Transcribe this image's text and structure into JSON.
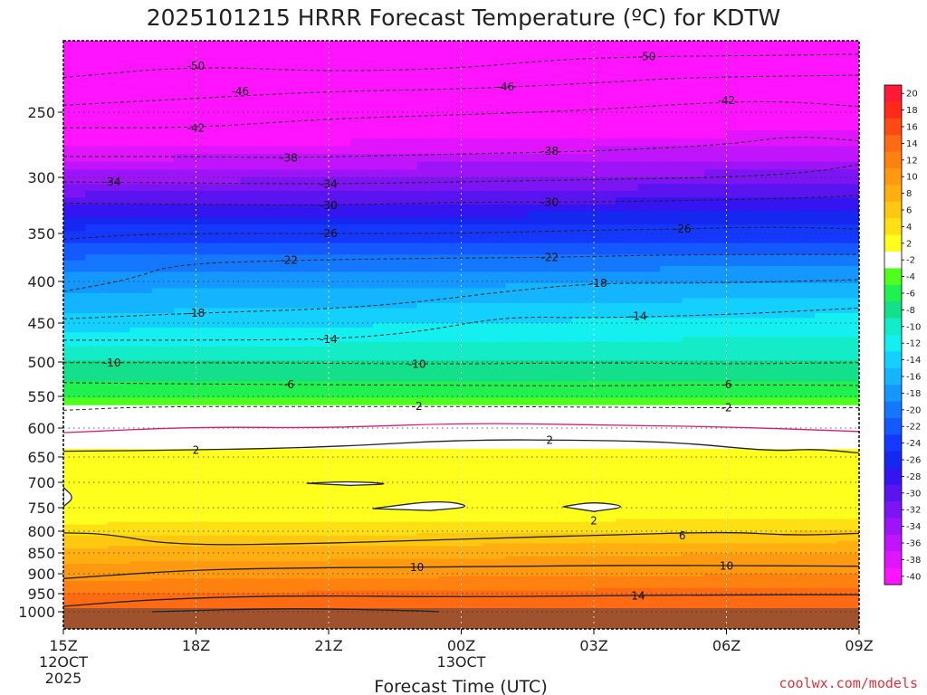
{
  "chart_data": {
    "type": "heatmap",
    "title": "2025101215 HRRR Forecast Temperature (ºC) for KDTW",
    "xlabel": "Forecast Time (UTC)",
    "credit": "coolwx.com/models",
    "x_ticks": [
      {
        "label": "15Z",
        "sub1": "12OCT",
        "sub2": "2025",
        "hours": 0
      },
      {
        "label": "18Z",
        "sub1": "",
        "sub2": "",
        "hours": 3
      },
      {
        "label": "21Z",
        "sub1": "",
        "sub2": "",
        "hours": 6
      },
      {
        "label": "00Z",
        "sub1": "13OCT",
        "sub2": "",
        "hours": 9
      },
      {
        "label": "03Z",
        "sub1": "",
        "sub2": "",
        "hours": 12
      },
      {
        "label": "06Z",
        "sub1": "",
        "sub2": "",
        "hours": 15
      },
      {
        "label": "09Z",
        "sub1": "",
        "sub2": "",
        "hours": 18
      }
    ],
    "xlim_hours": [
      0,
      18
    ],
    "y_ticks": [
      "250",
      "300",
      "350",
      "400",
      "450",
      "500",
      "550",
      "600",
      "650",
      "700",
      "750",
      "800",
      "850",
      "900",
      "950",
      "1000"
    ],
    "y_values": [
      250,
      300,
      350,
      400,
      450,
      500,
      550,
      600,
      650,
      700,
      750,
      800,
      850,
      900,
      950,
      1000
    ],
    "ylim_hpa": [
      200,
      1050
    ],
    "colorbar": {
      "labels": [
        "20",
        "18",
        "16",
        "14",
        "12",
        "10",
        "8",
        "6",
        "4",
        "2",
        "-2",
        "-4",
        "-6",
        "-8",
        "-10",
        "-12",
        "-14",
        "-16",
        "-18",
        "-20",
        "-22",
        "-24",
        "-26",
        "-28",
        "-30",
        "-32",
        "-34",
        "-36",
        "-38",
        "-40"
      ],
      "colors": [
        "#ff1a3a",
        "#ff2a1a",
        "#ff4a14",
        "#ff6a12",
        "#ff8210",
        "#ff9a10",
        "#ffb010",
        "#ffc810",
        "#ffe014",
        "#ffff1e",
        "#ffffff",
        "#50ff1e",
        "#20f050",
        "#14e08c",
        "#14ecc8",
        "#14f0f0",
        "#14d0ff",
        "#14b4ff",
        "#1498ff",
        "#1478ff",
        "#1458ff",
        "#1438ff",
        "#1428f0",
        "#3414f0",
        "#5a14f0",
        "#7c14f4",
        "#9e14f8",
        "#c014fc",
        "#e014ff",
        "#ff14ff"
      ]
    },
    "temperature_profile": {
      "pressure_hpa": [
        200,
        250,
        300,
        350,
        400,
        450,
        500,
        550,
        600,
        650,
        700,
        750,
        800,
        850,
        900,
        950,
        1000
      ],
      "temp_c_initial": [
        -53,
        -46,
        -35,
        -25,
        -19,
        -15,
        -10,
        -6,
        0,
        3,
        2,
        2,
        5,
        9,
        11,
        14,
        14
      ],
      "temp_c_final": [
        -51,
        -43,
        -33,
        -25,
        -18,
        -13,
        -10,
        -6,
        0,
        3,
        2,
        2,
        6,
        10,
        12,
        15,
        14
      ]
    },
    "contour_labels": [
      {
        "text": "-50",
        "hours": 3.0,
        "p": 210
      },
      {
        "text": "-50",
        "hours": 13.2,
        "p": 202
      },
      {
        "text": "-46",
        "hours": 4.0,
        "p": 232
      },
      {
        "text": "-46",
        "hours": 10.0,
        "p": 228
      },
      {
        "text": "-42",
        "hours": 3.0,
        "p": 262
      },
      {
        "text": "-42",
        "hours": 15.0,
        "p": 240
      },
      {
        "text": "-38",
        "hours": 5.1,
        "p": 285
      },
      {
        "text": "-38",
        "hours": 11.0,
        "p": 280
      },
      {
        "text": "-34",
        "hours": 1.1,
        "p": 304
      },
      {
        "text": "-34",
        "hours": 6.0,
        "p": 306
      },
      {
        "text": "-30",
        "hours": 6.0,
        "p": 325
      },
      {
        "text": "-30",
        "hours": 11.0,
        "p": 322
      },
      {
        "text": "-26",
        "hours": 6.0,
        "p": 350
      },
      {
        "text": "-26",
        "hours": 14.0,
        "p": 346
      },
      {
        "text": "-22",
        "hours": 5.1,
        "p": 378
      },
      {
        "text": "-22",
        "hours": 11.0,
        "p": 375
      },
      {
        "text": "-18",
        "hours": 3.0,
        "p": 438
      },
      {
        "text": "-18",
        "hours": 12.1,
        "p": 402
      },
      {
        "text": "-14",
        "hours": 6.0,
        "p": 471
      },
      {
        "text": "-14",
        "hours": 13.0,
        "p": 442
      },
      {
        "text": "-10",
        "hours": 1.1,
        "p": 501
      },
      {
        "text": "-10",
        "hours": 8.0,
        "p": 503
      },
      {
        "text": "-6",
        "hours": 5.1,
        "p": 533
      },
      {
        "text": "-6",
        "hours": 15.0,
        "p": 533
      },
      {
        "text": "-2",
        "hours": 8.0,
        "p": 566
      },
      {
        "text": "-2",
        "hours": 15.0,
        "p": 568
      },
      {
        "text": "2",
        "hours": 3.0,
        "p": 638
      },
      {
        "text": "2",
        "hours": 11.0,
        "p": 621
      },
      {
        "text": "2",
        "hours": 12.0,
        "p": 778
      },
      {
        "text": "6",
        "hours": 14.0,
        "p": 810
      },
      {
        "text": "10",
        "hours": 8.0,
        "p": 885
      },
      {
        "text": "10",
        "hours": 15.0,
        "p": 882
      },
      {
        "text": "14",
        "hours": 13.0,
        "p": 956
      }
    ],
    "contour_lines": [
      {
        "level": -50,
        "style": "dashed",
        "color": "#222222",
        "points": [
          [
            0,
            220
          ],
          [
            3,
            210
          ],
          [
            6,
            215
          ],
          [
            9,
            212
          ],
          [
            11,
            205
          ],
          [
            13,
            202
          ],
          [
            16,
            201
          ],
          [
            18,
            200
          ]
        ]
      },
      {
        "level": -46,
        "style": "dashed",
        "color": "#222222",
        "points": [
          [
            0,
            244
          ],
          [
            3,
            238
          ],
          [
            6,
            232
          ],
          [
            9,
            230
          ],
          [
            12,
            225
          ],
          [
            14,
            220
          ],
          [
            18,
            218
          ]
        ]
      },
      {
        "level": -42,
        "style": "dashed",
        "color": "#222222",
        "points": [
          [
            0,
            262
          ],
          [
            3,
            262
          ],
          [
            6,
            255
          ],
          [
            9,
            252
          ],
          [
            12,
            248
          ],
          [
            14,
            243
          ],
          [
            16,
            240
          ],
          [
            18,
            245
          ]
        ]
      },
      {
        "level": -38,
        "style": "dashed",
        "color": "#222222",
        "points": [
          [
            0,
            284
          ],
          [
            3,
            284
          ],
          [
            5.1,
            285
          ],
          [
            9,
            282
          ],
          [
            12,
            280
          ],
          [
            15,
            275
          ],
          [
            16.5,
            268
          ],
          [
            18,
            272
          ]
        ]
      },
      {
        "level": -34,
        "style": "dashed",
        "color": "#222222",
        "points": [
          [
            0,
            304
          ],
          [
            3,
            305
          ],
          [
            6,
            306
          ],
          [
            9,
            304
          ],
          [
            12,
            302
          ],
          [
            15,
            300
          ],
          [
            17,
            296
          ],
          [
            18,
            290
          ]
        ]
      },
      {
        "level": -30,
        "style": "dashed",
        "color": "#222222",
        "points": [
          [
            0,
            323
          ],
          [
            3,
            324
          ],
          [
            6,
            325
          ],
          [
            9,
            322
          ],
          [
            12,
            322
          ],
          [
            15,
            320
          ],
          [
            17,
            318
          ],
          [
            18,
            316
          ]
        ]
      },
      {
        "level": -26,
        "style": "dashed",
        "color": "#222222",
        "points": [
          [
            0,
            356
          ],
          [
            2,
            350
          ],
          [
            6,
            350
          ],
          [
            9,
            350
          ],
          [
            12,
            347
          ],
          [
            14,
            346
          ],
          [
            16,
            344
          ],
          [
            18,
            346
          ]
        ]
      },
      {
        "level": -22,
        "style": "dashed",
        "color": "#222222",
        "points": [
          [
            0,
            412
          ],
          [
            1.5,
            398
          ],
          [
            2.5,
            382
          ],
          [
            5.1,
            378
          ],
          [
            8,
            376
          ],
          [
            11,
            375
          ],
          [
            14,
            372
          ],
          [
            18,
            372
          ]
        ]
      },
      {
        "level": -18,
        "style": "dashed",
        "color": "#222222",
        "points": [
          [
            0,
            445
          ],
          [
            3,
            438
          ],
          [
            6,
            433
          ],
          [
            8,
            425
          ],
          [
            10,
            412
          ],
          [
            12,
            402
          ],
          [
            15,
            402
          ],
          [
            18,
            398
          ]
        ]
      },
      {
        "level": -14,
        "style": "dashed",
        "color": "#222222",
        "points": [
          [
            0,
            472
          ],
          [
            3,
            472
          ],
          [
            6,
            471
          ],
          [
            8,
            462
          ],
          [
            10,
            442
          ],
          [
            12,
            444
          ],
          [
            15,
            440
          ],
          [
            18,
            432
          ]
        ]
      },
      {
        "level": -10,
        "style": "dashed",
        "color": "#222222",
        "points": [
          [
            0,
            501
          ],
          [
            3,
            501
          ],
          [
            6,
            502
          ],
          [
            9,
            503
          ],
          [
            12,
            501
          ],
          [
            15,
            503
          ],
          [
            18,
            501
          ]
        ]
      },
      {
        "level": -6,
        "style": "dashed",
        "color": "#222222",
        "points": [
          [
            0,
            530
          ],
          [
            3,
            532
          ],
          [
            6,
            533
          ],
          [
            9,
            534
          ],
          [
            12,
            535
          ],
          [
            15,
            533
          ],
          [
            18,
            534
          ]
        ]
      },
      {
        "level": -2,
        "style": "dashed",
        "color": "#222222",
        "points": [
          [
            0,
            572
          ],
          [
            2,
            566
          ],
          [
            6,
            566
          ],
          [
            9,
            566
          ],
          [
            12,
            567
          ],
          [
            15,
            568
          ],
          [
            18,
            568
          ]
        ]
      },
      {
        "level": 0,
        "style": "solid",
        "color": "#d81a7a",
        "points": [
          [
            0,
            608
          ],
          [
            3,
            598
          ],
          [
            6,
            600
          ],
          [
            9,
            592
          ],
          [
            12,
            595
          ],
          [
            15,
            598
          ],
          [
            18,
            606
          ]
        ]
      },
      {
        "level": 2,
        "style": "solid",
        "color": "#222222",
        "points": [
          [
            0,
            640
          ],
          [
            3,
            638
          ],
          [
            6,
            633
          ],
          [
            9,
            620
          ],
          [
            12,
            621
          ],
          [
            14,
            625
          ],
          [
            16,
            640
          ],
          [
            17,
            636
          ],
          [
            18,
            643
          ]
        ]
      },
      {
        "level": 2,
        "style": "solid",
        "color": "#222222",
        "closed": true,
        "points": [
          [
            5.5,
            702
          ],
          [
            6.5,
            698
          ],
          [
            7.5,
            703
          ],
          [
            6.5,
            706
          ]
        ]
      },
      {
        "level": 2,
        "style": "solid",
        "color": "#222222",
        "closed": true,
        "points": [
          [
            7.0,
            752
          ],
          [
            8.5,
            735
          ],
          [
            9.3,
            748
          ],
          [
            8.3,
            756
          ]
        ]
      },
      {
        "level": 2,
        "style": "solid",
        "color": "#222222",
        "closed": true,
        "points": [
          [
            11.3,
            748
          ],
          [
            12.0,
            738
          ],
          [
            12.8,
            748
          ],
          [
            12.0,
            758
          ]
        ]
      },
      {
        "level": 2,
        "style": "solid",
        "color": "#222222",
        "closed": true,
        "points": [
          [
            0,
            710
          ],
          [
            0.25,
            730
          ],
          [
            0,
            748
          ]
        ]
      },
      {
        "level": 6,
        "style": "solid",
        "color": "#222222",
        "points": [
          [
            0,
            804
          ],
          [
            1,
            806
          ],
          [
            2.5,
            833
          ],
          [
            6,
            828
          ],
          [
            9,
            818
          ],
          [
            12,
            810
          ],
          [
            15,
            801
          ],
          [
            16.5,
            810
          ],
          [
            18,
            805
          ]
        ]
      },
      {
        "level": 10,
        "style": "solid",
        "color": "#222222",
        "points": [
          [
            0,
            912
          ],
          [
            3,
            890
          ],
          [
            6,
            885
          ],
          [
            9,
            884
          ],
          [
            12,
            880
          ],
          [
            15,
            880
          ],
          [
            18,
            882
          ]
        ]
      },
      {
        "level": 14,
        "style": "solid",
        "color": "#222222",
        "points": [
          [
            0,
            985
          ],
          [
            2,
            966
          ],
          [
            5,
            955
          ],
          [
            9,
            959
          ],
          [
            12,
            956
          ],
          [
            15,
            953
          ],
          [
            18,
            953
          ]
        ]
      },
      {
        "level": 18,
        "style": "solid",
        "color": "#222222",
        "points": [
          [
            2,
            1000
          ],
          [
            5,
            990
          ],
          [
            8,
            997
          ],
          [
            8.5,
            1000
          ]
        ]
      }
    ]
  }
}
